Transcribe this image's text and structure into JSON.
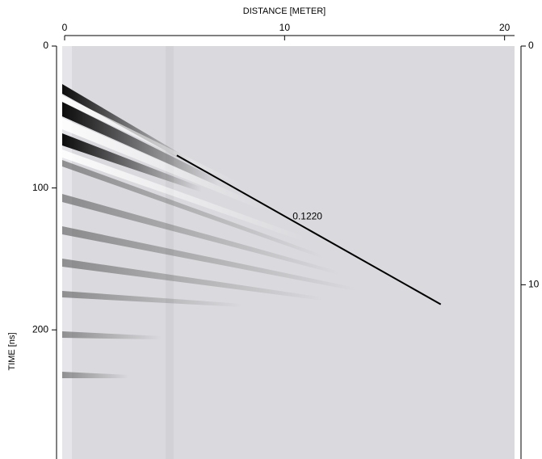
{
  "chart_data": {
    "type": "line",
    "xlabel": "DISTANCE [METER]",
    "ylabel": "TIME [ns]",
    "x": [
      5.1,
      17.1
    ],
    "values": [
      77,
      182
    ],
    "color": "#000000",
    "annotation": "0.1220",
    "xlim": [
      0,
      20.6
    ],
    "xticks": [
      0,
      10,
      20
    ],
    "ylim": [
      0,
      291
    ],
    "yticks": [
      0,
      100,
      200
    ],
    "y2lim": [
      0,
      17.3
    ],
    "y2ticks": [
      0,
      10
    ]
  }
}
